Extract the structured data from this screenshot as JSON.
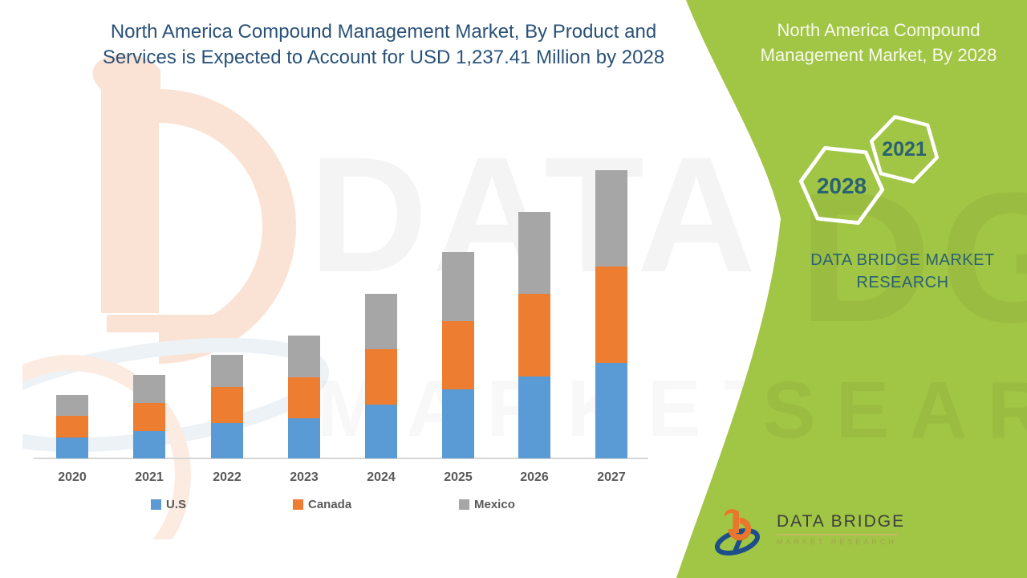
{
  "header": {
    "title": "North America Compound Management Market, By Product and Services is Expected to Account for USD 1,237.41 Million by 2028",
    "title_color": "#2A5279"
  },
  "chart_data": {
    "type": "bar",
    "stacked": true,
    "title": "North America Compound Management Market, By Product and Services is Expected to Account for USD 1,237.41 Million by 2028",
    "categories": [
      "2020",
      "2021",
      "2022",
      "2023",
      "2024",
      "2025",
      "2026",
      "2027"
    ],
    "series": [
      {
        "name": "U.S",
        "color": "#5B9BD5",
        "values": [
          26,
          34,
          44,
          50,
          67,
          86,
          102,
          119
        ]
      },
      {
        "name": "Canada",
        "color": "#ED7D31",
        "values": [
          27,
          35,
          45,
          51,
          69,
          85,
          103,
          120
        ]
      },
      {
        "name": "Mexico",
        "color": "#A6A6A6",
        "values": [
          26,
          35,
          40,
          52,
          69,
          86,
          102,
          120
        ]
      }
    ],
    "xlabel": "",
    "ylabel": "",
    "units": "relative bar heights (no y-axis scale shown in figure)",
    "ylim": [
      0,
      380
    ],
    "grid": false,
    "y_axis_visible": false,
    "legend_position": "bottom"
  },
  "side_panel": {
    "background_color": "#A1C544",
    "heading": "North America Compound Management Market, By 2028",
    "hexagons": [
      {
        "label": "2028"
      },
      {
        "label": "2021"
      }
    ],
    "brand_text": "DATA BRIDGE MARKET RESEARCH",
    "text_color": "#2A6173"
  },
  "footer_logo": {
    "name": "DATA BRIDGE",
    "tagline": "MARKET RESEARCH"
  },
  "watermarks": {
    "row1": "DATA BRIDGE",
    "row2": "MARKET RESEARCH",
    "green_row1": "DGE",
    "green_row2": "SEARCH"
  }
}
